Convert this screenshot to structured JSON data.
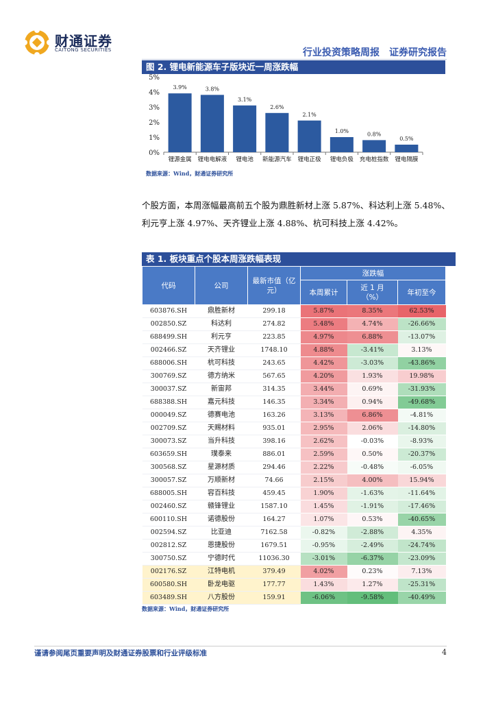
{
  "brand": {
    "name_cn": "财通证券",
    "name_en": "CAITONG SECURITIES"
  },
  "header": {
    "title": "行业投资策略周报　证券研究报告"
  },
  "figure": {
    "title": "图 2. 锂电新能源车子版块近一周涨跌幅",
    "source": "数据来源：Wind，财通证券研究所"
  },
  "chart_data": {
    "type": "bar",
    "title": "图 2. 锂电新能源车子版块近一周涨跌幅",
    "categories": [
      "锂源金属",
      "锂电电解液",
      "锂电池",
      "新能源汽车",
      "锂电正极",
      "锂电负极",
      "充电桩指数",
      "锂电隔膜"
    ],
    "values": [
      3.9,
      3.8,
      3.1,
      2.6,
      2.1,
      1.0,
      0.8,
      0.5
    ],
    "labels": [
      "3.9%",
      "3.8%",
      "3.1%",
      "2.6%",
      "2.1%",
      "1.0%",
      "0.8%",
      "0.5%"
    ],
    "yticks": [
      "0%",
      "1%",
      "2%",
      "3%",
      "4%",
      "5%"
    ],
    "ylim": [
      0,
      5
    ],
    "color": "#2c5aa0"
  },
  "paragraph": "个股方面，本周涨幅最高前五个股为鼎胜新材上涨 5.87%、科达利上涨 5.48%、利元亨上涨 4.97%、天齐锂业上涨 4.88%、杭可科技上涨 4.42%。",
  "table": {
    "title": "表 1. 板块重点个股本周涨跌幅表现",
    "headers": {
      "code": "代码",
      "company": "公司",
      "mcap": "最新市值（亿元）",
      "group": "涨跌幅",
      "week": "本周累计",
      "month": "近 1 月（%）",
      "ytd": "年初至今"
    },
    "rows": [
      {
        "code": "603876.SH",
        "name": "鼎胜新材",
        "mcap": "299.18",
        "week": "5.87%",
        "month": "8.35%",
        "ytd": "62.53%",
        "w": 5.87,
        "m": 8.35,
        "y": 62.53,
        "hl": false
      },
      {
        "code": "002850.SZ",
        "name": "科达利",
        "mcap": "274.82",
        "week": "5.48%",
        "month": "4.74%",
        "ytd": "-26.66%",
        "w": 5.48,
        "m": 4.74,
        "y": -26.66,
        "hl": false
      },
      {
        "code": "688499.SH",
        "name": "利元亨",
        "mcap": "223.85",
        "week": "4.97%",
        "month": "6.88%",
        "ytd": "-13.07%",
        "w": 4.97,
        "m": 6.88,
        "y": -13.07,
        "hl": false
      },
      {
        "code": "002466.SZ",
        "name": "天齐锂业",
        "mcap": "1748.10",
        "week": "4.88%",
        "month": "-3.41%",
        "ytd": "3.13%",
        "w": 4.88,
        "m": -3.41,
        "y": 3.13,
        "hl": false
      },
      {
        "code": "688006.SH",
        "name": "杭可科技",
        "mcap": "243.65",
        "week": "4.42%",
        "month": "-3.03%",
        "ytd": "-43.86%",
        "w": 4.42,
        "m": -3.03,
        "y": -43.86,
        "hl": false
      },
      {
        "code": "300769.SZ",
        "name": "德方纳米",
        "mcap": "567.65",
        "week": "4.20%",
        "month": "1.93%",
        "ytd": "19.98%",
        "w": 4.2,
        "m": 1.93,
        "y": 19.98,
        "hl": false
      },
      {
        "code": "300037.SZ",
        "name": "新宙邦",
        "mcap": "314.35",
        "week": "3.44%",
        "month": "0.69%",
        "ytd": "-31.93%",
        "w": 3.44,
        "m": 0.69,
        "y": -31.93,
        "hl": false
      },
      {
        "code": "688388.SH",
        "name": "嘉元科技",
        "mcap": "146.35",
        "week": "3.34%",
        "month": "0.94%",
        "ytd": "-49.68%",
        "w": 3.34,
        "m": 0.94,
        "y": -49.68,
        "hl": false
      },
      {
        "code": "000049.SZ",
        "name": "德赛电池",
        "mcap": "163.26",
        "week": "3.13%",
        "month": "6.86%",
        "ytd": "-4.81%",
        "w": 3.13,
        "m": 6.86,
        "y": -4.81,
        "hl": false
      },
      {
        "code": "002709.SZ",
        "name": "天赐材料",
        "mcap": "935.01",
        "week": "2.95%",
        "month": "2.06%",
        "ytd": "-14.80%",
        "w": 2.95,
        "m": 2.06,
        "y": -14.8,
        "hl": false
      },
      {
        "code": "300073.SZ",
        "name": "当升科技",
        "mcap": "398.16",
        "week": "2.62%",
        "month": "-0.03%",
        "ytd": "-8.93%",
        "w": 2.62,
        "m": -0.03,
        "y": -8.93,
        "hl": false
      },
      {
        "code": "603659.SH",
        "name": "璞泰来",
        "mcap": "886.01",
        "week": "2.59%",
        "month": "0.50%",
        "ytd": "-20.37%",
        "w": 2.59,
        "m": 0.5,
        "y": -20.37,
        "hl": false
      },
      {
        "code": "300568.SZ",
        "name": "星源材质",
        "mcap": "294.46",
        "week": "2.22%",
        "month": "-0.48%",
        "ytd": "-6.05%",
        "w": 2.22,
        "m": -0.48,
        "y": -6.05,
        "hl": false
      },
      {
        "code": "300057.SZ",
        "name": "万顺新材",
        "mcap": "74.66",
        "week": "2.15%",
        "month": "4.00%",
        "ytd": "15.94%",
        "w": 2.15,
        "m": 4.0,
        "y": 15.94,
        "hl": false
      },
      {
        "code": "688005.SH",
        "name": "容百科技",
        "mcap": "459.45",
        "week": "1.90%",
        "month": "-1.63%",
        "ytd": "-11.64%",
        "w": 1.9,
        "m": -1.63,
        "y": -11.64,
        "hl": false
      },
      {
        "code": "002460.SZ",
        "name": "赣锋锂业",
        "mcap": "1587.10",
        "week": "1.45%",
        "month": "-1.91%",
        "ytd": "-17.46%",
        "w": 1.45,
        "m": -1.91,
        "y": -17.46,
        "hl": false
      },
      {
        "code": "600110.SH",
        "name": "诺德股份",
        "mcap": "164.27",
        "week": "1.07%",
        "month": "0.53%",
        "ytd": "-40.65%",
        "w": 1.07,
        "m": 0.53,
        "y": -40.65,
        "hl": false
      },
      {
        "code": "002594.SZ",
        "name": "比亚迪",
        "mcap": "7162.58",
        "week": "-0.82%",
        "month": "-2.88%",
        "ytd": "4.35%",
        "w": -0.82,
        "m": -2.88,
        "y": 4.35,
        "hl": false
      },
      {
        "code": "002812.SZ",
        "name": "恩捷股份",
        "mcap": "1679.51",
        "week": "-0.95%",
        "month": "-2.49%",
        "ytd": "-24.74%",
        "w": -0.95,
        "m": -2.49,
        "y": -24.74,
        "hl": false
      },
      {
        "code": "300750.SZ",
        "name": "宁德时代",
        "mcap": "11036.30",
        "week": "-3.01%",
        "month": "-6.37%",
        "ytd": "-23.09%",
        "w": -3.01,
        "m": -6.37,
        "y": -23.09,
        "hl": false
      },
      {
        "code": "002176.SZ",
        "name": "江特电机",
        "mcap": "379.49",
        "week": "4.02%",
        "month": "0.23%",
        "ytd": "7.13%",
        "w": 4.02,
        "m": 0.23,
        "y": 7.13,
        "hl": true
      },
      {
        "code": "600580.SH",
        "name": "卧龙电驱",
        "mcap": "177.77",
        "week": "1.43%",
        "month": "1.27%",
        "ytd": "-25.31%",
        "w": 1.43,
        "m": 1.27,
        "y": -25.31,
        "hl": true
      },
      {
        "code": "603489.SH",
        "name": "八方股份",
        "mcap": "159.91",
        "week": "-6.06%",
        "month": "-9.58%",
        "ytd": "-40.49%",
        "w": -6.06,
        "m": -9.58,
        "y": -40.49,
        "hl": true
      }
    ],
    "source": "数据来源：Wind，财通证券研究所"
  },
  "footer": {
    "disclaimer": "谨请参阅尾页重要声明及财通证券股票和行业评级标准",
    "page": "4"
  }
}
